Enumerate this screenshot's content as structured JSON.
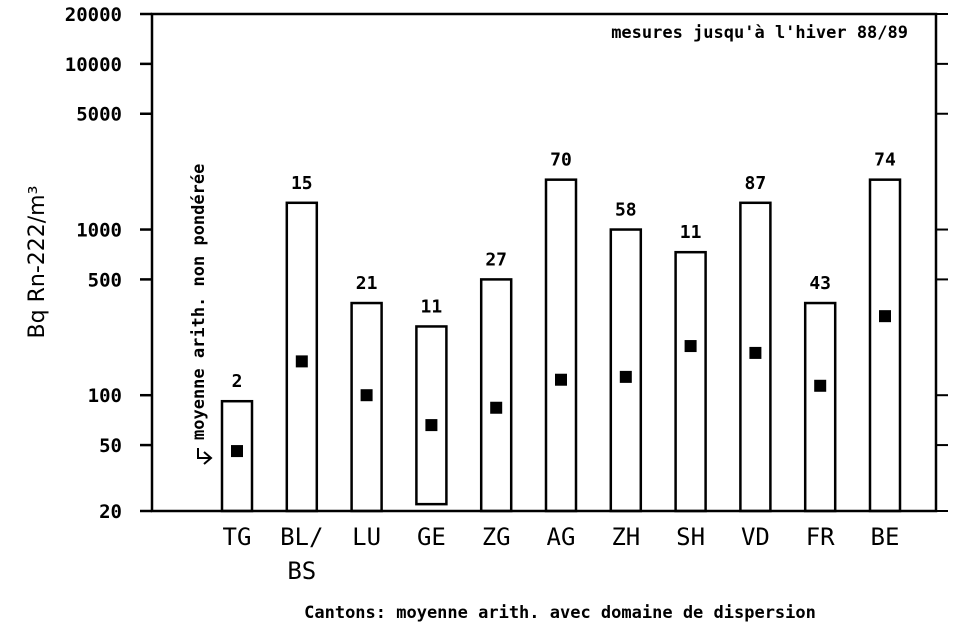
{
  "chart_data": {
    "type": "range_bar",
    "annotation": "mesures jusqu'à l'hiver 88/89",
    "side_note": "moyenne arith. non pondérée",
    "ylabel": "Bq Rn-222/m³",
    "xlabel": "Cantons: moyenne arith. avec domaine de dispersion",
    "categories": [
      "TG",
      "BL/\nBS",
      "LU",
      "GE",
      "ZG",
      "AG",
      "ZH",
      "SH",
      "VD",
      "FR",
      "BE"
    ],
    "low": [
      20,
      20,
      20,
      22,
      20,
      20,
      20,
      20,
      20,
      20,
      20
    ],
    "high": [
      92,
      1450,
      360,
      260,
      500,
      2000,
      1000,
      730,
      1450,
      360,
      2000
    ],
    "means": [
      46,
      160,
      100,
      66,
      84,
      124,
      129,
      198,
      180,
      114,
      300
    ],
    "counts": [
      2,
      15,
      21,
      11,
      27,
      70,
      58,
      11,
      87,
      43,
      74
    ],
    "log_scale": true,
    "ylim": [
      20,
      20000
    ],
    "yticks": [
      20,
      50,
      100,
      500,
      1000,
      5000,
      10000,
      20000
    ],
    "color": "#000000"
  }
}
